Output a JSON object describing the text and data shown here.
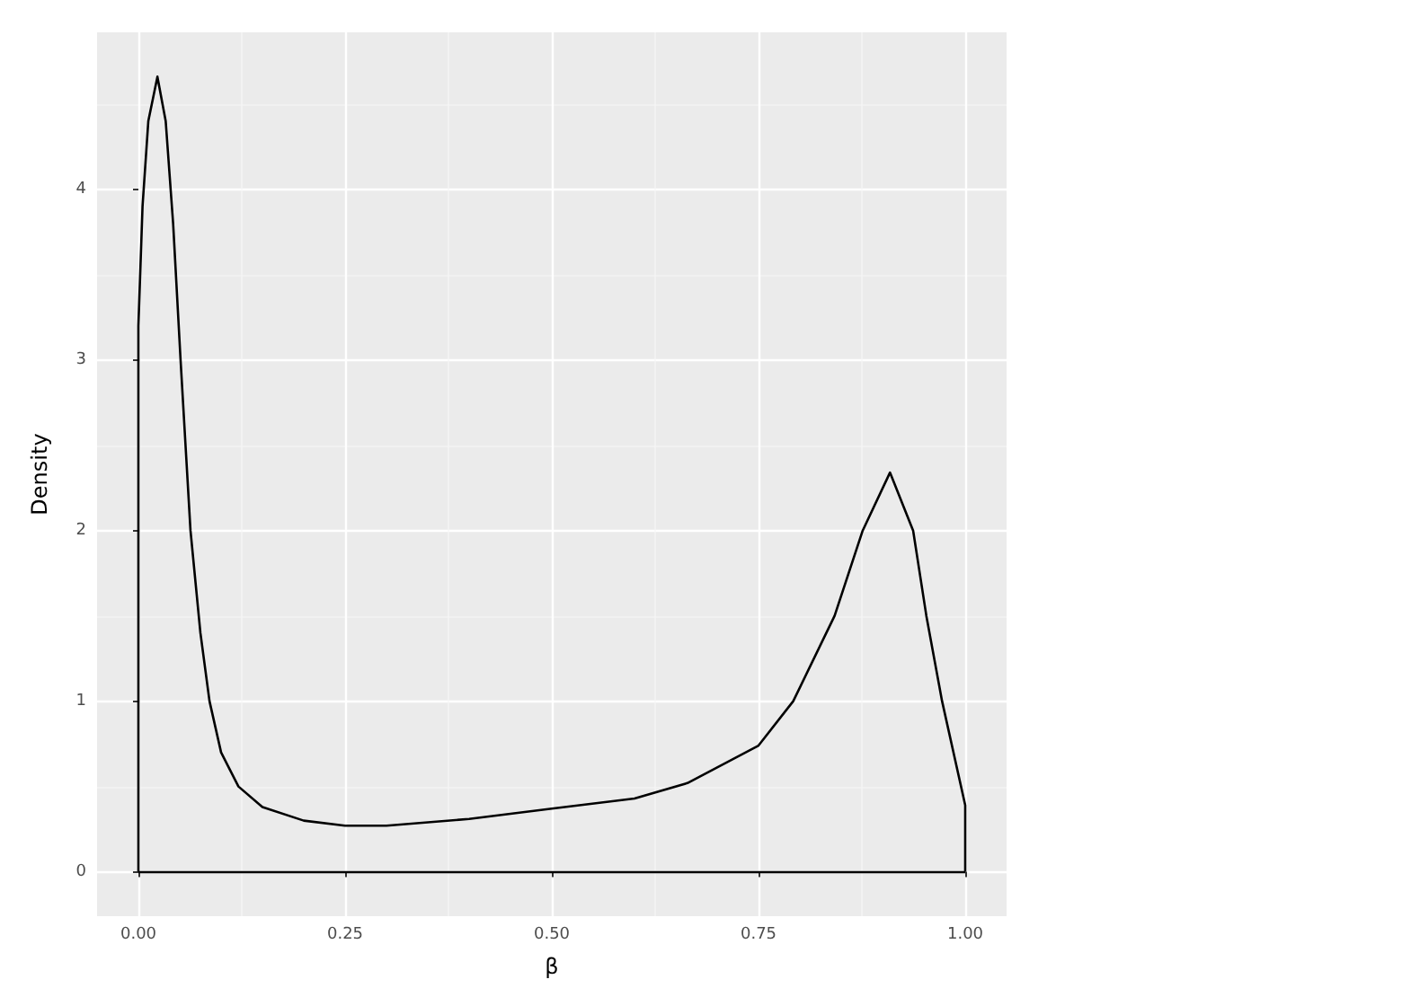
{
  "chart_data": {
    "type": "line",
    "xlabel": "β",
    "ylabel": "Density",
    "series": [
      {
        "color": "#000000",
        "x": [
          0,
          0,
          0.005,
          0.012,
          0.023,
          0.033,
          0.042,
          0.051,
          0.063,
          0.075,
          0.086,
          0.1,
          0.121,
          0.15,
          0.2,
          0.25,
          0.3,
          0.4,
          0.5,
          0.6,
          0.664,
          0.75,
          0.792,
          0.842,
          0.876,
          0.909,
          0.937,
          0.953,
          0.972,
          1,
          1
        ],
        "values": [
          0,
          3.2,
          3.9,
          4.4,
          4.66,
          4.4,
          3.8,
          3,
          2,
          1.4,
          1,
          0.7,
          0.5,
          0.38,
          0.3,
          0.27,
          0.27,
          0.31,
          0.37,
          0.43,
          0.52,
          0.74,
          1,
          1.5,
          2,
          2.34,
          2,
          1.5,
          1,
          0.39,
          0
        ]
      }
    ],
    "ref_lines": [
      {
        "axis": "y",
        "value": 0,
        "color": "#000000",
        "line_style": "solid"
      }
    ],
    "xlim": [
      -0.05,
      1.05
    ],
    "ylim": [
      -0.26,
      4.92
    ],
    "xticks": [
      {
        "value": 0,
        "label": "0.00"
      },
      {
        "value": 0.125,
        "label": null
      },
      {
        "value": 0.25,
        "label": "0.25"
      },
      {
        "value": 0.375,
        "label": null
      },
      {
        "value": 0.5,
        "label": "0.50"
      },
      {
        "value": 0.625,
        "label": null
      },
      {
        "value": 0.75,
        "label": "0.75"
      },
      {
        "value": 0.875,
        "label": null
      },
      {
        "value": 1,
        "label": "1.00"
      }
    ],
    "yticks": [
      0,
      {
        "value": 0.5,
        "label": null
      },
      1,
      {
        "value": 1.5,
        "label": null
      },
      2,
      {
        "value": 2.5,
        "label": null
      },
      3,
      {
        "value": 3.5,
        "label": null
      },
      4,
      {
        "value": 4.5,
        "label": null
      }
    ],
    "grid": true,
    "marker": "none",
    "line_style": "solid"
  }
}
